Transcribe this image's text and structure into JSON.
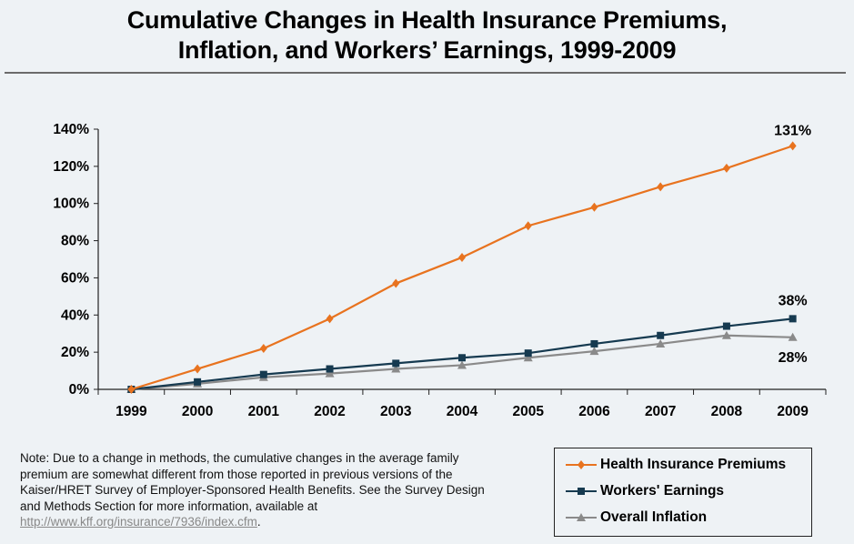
{
  "title_line1": "Cumulative Changes in Health Insurance Premiums,",
  "title_line2": "Inflation, and Workers’ Earnings, 1999-2009",
  "note": {
    "text": "Note:  Due to a change in methods, the cumulative changes in the average family premium are somewhat different from those reported in previous versions of the Kaiser/HRET Survey of Employer-Sponsored Health Benefits.  See the Survey Design and Methods Section for more information, available at",
    "link": "http://www.kff.org/insurance/7936/index.cfm",
    "link_suffix": "."
  },
  "chart_data": {
    "type": "line",
    "title": "Cumulative Changes in Health Insurance Premiums, Inflation, and Workers’ Earnings, 1999-2009",
    "x": [
      "1999",
      "2000",
      "2001",
      "2002",
      "2003",
      "2004",
      "2005",
      "2006",
      "2007",
      "2008",
      "2009"
    ],
    "ylim": [
      0,
      140
    ],
    "yticks": [
      "0%",
      "20%",
      "40%",
      "60%",
      "80%",
      "100%",
      "120%",
      "140%"
    ],
    "grid": false,
    "legend_position": "bottom-right",
    "series": [
      {
        "name": "Health Insurance Premiums",
        "color": "#e8731f",
        "marker": "diamond",
        "values": [
          0,
          11,
          22,
          38,
          57,
          71,
          88,
          98,
          109,
          119,
          131
        ],
        "end_label": "131%"
      },
      {
        "name": "Workers' Earnings",
        "color": "#163a50",
        "marker": "square",
        "values": [
          0,
          4,
          8,
          11,
          14,
          17,
          19.5,
          24.5,
          29,
          34,
          38
        ],
        "end_label": "38%"
      },
      {
        "name": "Overall Inflation",
        "color": "#8a8a8a",
        "marker": "triangle",
        "values": [
          0,
          3,
          6.5,
          8.5,
          11,
          13,
          17,
          20.5,
          24.5,
          29,
          28
        ],
        "end_label": "28%"
      }
    ]
  }
}
